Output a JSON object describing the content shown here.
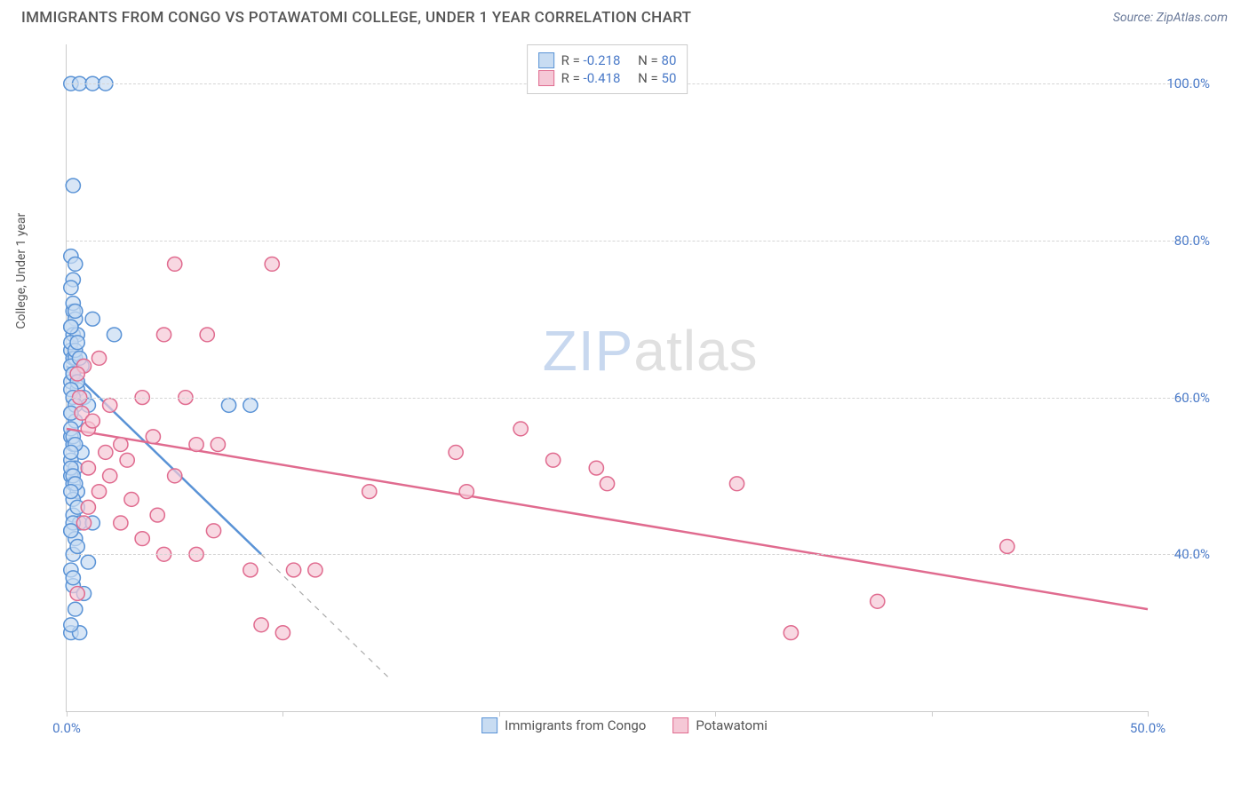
{
  "header": {
    "title": "IMMIGRANTS FROM CONGO VS POTAWATOMI COLLEGE, UNDER 1 YEAR CORRELATION CHART",
    "source_prefix": "Source: ",
    "source": "ZipAtlas.com"
  },
  "watermark": {
    "part1": "ZIP",
    "part2": "atlas"
  },
  "chart": {
    "type": "scatter",
    "ylabel": "College, Under 1 year",
    "background_color": "#ffffff",
    "grid_color": "#d5d5d5",
    "axis_color": "#cccccc",
    "tick_label_color": "#4a7ac8",
    "tick_fontsize": 15,
    "xlim": [
      0,
      50
    ],
    "ylim": [
      20,
      105
    ],
    "x_ticks": [
      0,
      10,
      20,
      30,
      40,
      50
    ],
    "x_tick_labels": [
      "0.0%",
      "",
      "",
      "",
      "",
      "50.0%"
    ],
    "y_ticks": [
      40,
      60,
      80,
      100
    ],
    "y_tick_labels": [
      "40.0%",
      "60.0%",
      "80.0%",
      "100.0%"
    ],
    "marker_radius": 8,
    "marker_stroke_width": 1.5,
    "marker_fill_opacity": 0.25,
    "line_width": 2.5,
    "series": [
      {
        "key": "congo",
        "label": "Immigrants from Congo",
        "color": "#5a93d6",
        "fill": "#c8dcf2",
        "R": "-0.218",
        "N": "80",
        "regression": {
          "x1": 0,
          "y1": 64,
          "x2": 9,
          "y2": 40,
          "dash_to_x": 15,
          "dash_to_y": 24
        },
        "points": [
          [
            0.2,
            100
          ],
          [
            0.6,
            100
          ],
          [
            1.2,
            100
          ],
          [
            1.8,
            100
          ],
          [
            0.3,
            87
          ],
          [
            0.2,
            78
          ],
          [
            0.4,
            77
          ],
          [
            0.3,
            75
          ],
          [
            0.2,
            74
          ],
          [
            0.3,
            71
          ],
          [
            0.4,
            70
          ],
          [
            1.2,
            70
          ],
          [
            0.2,
            69
          ],
          [
            0.3,
            68
          ],
          [
            0.5,
            68
          ],
          [
            2.2,
            68
          ],
          [
            0.2,
            66
          ],
          [
            0.3,
            65
          ],
          [
            0.4,
            65
          ],
          [
            0.7,
            64
          ],
          [
            0.2,
            64
          ],
          [
            0.3,
            63
          ],
          [
            0.2,
            62
          ],
          [
            0.5,
            61
          ],
          [
            0.3,
            60
          ],
          [
            0.8,
            60
          ],
          [
            0.2,
            58
          ],
          [
            0.4,
            57
          ],
          [
            1.0,
            59
          ],
          [
            7.5,
            59
          ],
          [
            8.5,
            59
          ],
          [
            0.2,
            55
          ],
          [
            0.3,
            54
          ],
          [
            0.7,
            53
          ],
          [
            0.2,
            52
          ],
          [
            0.4,
            51
          ],
          [
            0.2,
            50
          ],
          [
            0.3,
            49
          ],
          [
            0.5,
            48
          ],
          [
            0.3,
            45
          ],
          [
            0.6,
            44
          ],
          [
            1.2,
            44
          ],
          [
            0.2,
            43
          ],
          [
            0.4,
            42
          ],
          [
            0.3,
            40
          ],
          [
            1.0,
            39
          ],
          [
            0.3,
            36
          ],
          [
            0.8,
            35
          ],
          [
            0.2,
            30
          ],
          [
            0.6,
            30
          ],
          [
            0.3,
            63
          ],
          [
            0.5,
            62
          ],
          [
            0.2,
            67
          ],
          [
            0.4,
            66
          ],
          [
            0.6,
            65
          ],
          [
            0.2,
            56
          ],
          [
            0.3,
            55
          ],
          [
            0.4,
            54
          ],
          [
            0.2,
            53
          ],
          [
            0.3,
            47
          ],
          [
            0.5,
            46
          ],
          [
            0.2,
            61
          ],
          [
            0.3,
            60
          ],
          [
            0.4,
            59
          ],
          [
            0.2,
            58
          ],
          [
            0.3,
            72
          ],
          [
            0.4,
            71
          ],
          [
            0.2,
            69
          ],
          [
            0.5,
            67
          ],
          [
            0.2,
            51
          ],
          [
            0.3,
            50
          ],
          [
            0.4,
            49
          ],
          [
            0.2,
            48
          ],
          [
            0.3,
            44
          ],
          [
            0.2,
            43
          ],
          [
            0.5,
            41
          ],
          [
            0.2,
            38
          ],
          [
            0.3,
            37
          ],
          [
            0.4,
            33
          ],
          [
            0.2,
            31
          ]
        ]
      },
      {
        "key": "potawatomi",
        "label": "Potawatomi",
        "color": "#e06b8f",
        "fill": "#f5c8d6",
        "R": "-0.418",
        "N": "50",
        "regression": {
          "x1": 0,
          "y1": 56,
          "x2": 50,
          "y2": 33
        },
        "points": [
          [
            5.0,
            77
          ],
          [
            9.5,
            77
          ],
          [
            4.5,
            68
          ],
          [
            6.5,
            68
          ],
          [
            1.5,
            65
          ],
          [
            0.8,
            64
          ],
          [
            0.5,
            63
          ],
          [
            3.5,
            60
          ],
          [
            5.5,
            60
          ],
          [
            2.0,
            59
          ],
          [
            1.0,
            56
          ],
          [
            4.0,
            55
          ],
          [
            21.0,
            56
          ],
          [
            2.5,
            54
          ],
          [
            6.0,
            54
          ],
          [
            7.0,
            54
          ],
          [
            18.0,
            53
          ],
          [
            22.5,
            52
          ],
          [
            24.5,
            51
          ],
          [
            1.0,
            51
          ],
          [
            2.0,
            50
          ],
          [
            5.0,
            50
          ],
          [
            18.5,
            48
          ],
          [
            25.0,
            49
          ],
          [
            31.0,
            49
          ],
          [
            1.5,
            48
          ],
          [
            3.0,
            47
          ],
          [
            14.0,
            48
          ],
          [
            0.8,
            44
          ],
          [
            2.5,
            44
          ],
          [
            43.5,
            41
          ],
          [
            4.5,
            40
          ],
          [
            6.0,
            40
          ],
          [
            8.5,
            38
          ],
          [
            10.5,
            38
          ],
          [
            11.5,
            38
          ],
          [
            37.5,
            34
          ],
          [
            0.5,
            35
          ],
          [
            33.5,
            30
          ],
          [
            9.0,
            31
          ],
          [
            10.0,
            30
          ],
          [
            0.7,
            58
          ],
          [
            1.2,
            57
          ],
          [
            2.8,
            52
          ],
          [
            1.0,
            46
          ],
          [
            3.5,
            42
          ],
          [
            0.6,
            60
          ],
          [
            1.8,
            53
          ],
          [
            4.2,
            45
          ],
          [
            6.8,
            43
          ]
        ]
      }
    ]
  },
  "legend_top": {
    "R_label": "R =",
    "N_label": "N ="
  }
}
